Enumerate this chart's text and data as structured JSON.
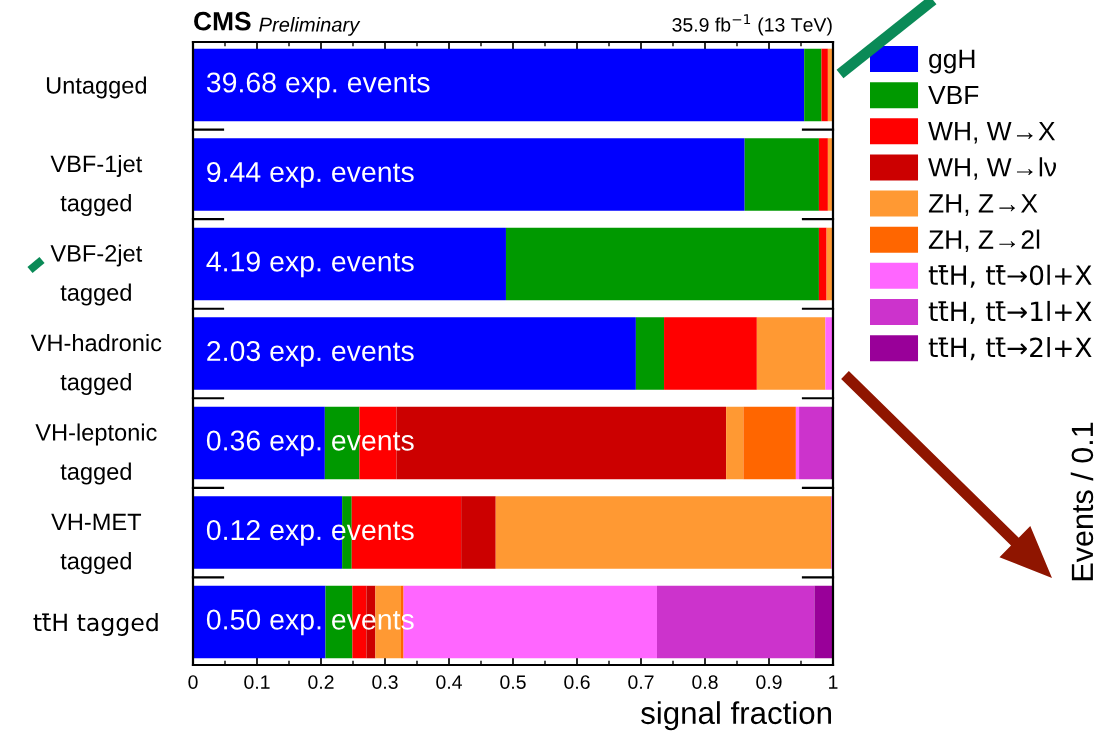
{
  "chart_data": {
    "type": "bar",
    "orientation": "horizontal",
    "stacked": true,
    "title": "CMS",
    "subtitle": "Preliminary",
    "xlabel": "signal fraction",
    "categories": [
      "Untagged",
      "VBF-1jet\ntagged",
      "VBF-2jet\ntagged",
      "VH-hadronic\ntagged",
      "VH-leptonic\ntagged",
      "VH-MET\ntagged",
      "tt̄H tagged"
    ],
    "series": [
      {
        "name": "ggH",
        "color": "#0000ff",
        "values": [
          0.955,
          0.862,
          0.489,
          0.692,
          0.206,
          0.233,
          0.207
        ]
      },
      {
        "name": "VBF",
        "color": "#009900",
        "values": [
          0.027,
          0.116,
          0.489,
          0.044,
          0.054,
          0.015,
          0.042
        ]
      },
      {
        "name": "WH, W→X",
        "color": "#ff0000",
        "values": [
          0.01,
          0.014,
          0.012,
          0.145,
          0.058,
          0.171,
          0.022
        ]
      },
      {
        "name": "WH, W→lν",
        "color": "#cc0000",
        "values": [
          null,
          null,
          null,
          null,
          0.515,
          0.054,
          0.014
        ]
      },
      {
        "name": "ZH, Z→X",
        "color": "#ff9933",
        "values": [
          0.008,
          0.008,
          0.01,
          0.107,
          0.027,
          0.524,
          0.04
        ]
      },
      {
        "name": "ZH, Z→2l",
        "color": "#ff6600",
        "values": [
          null,
          null,
          null,
          null,
          0.082,
          null,
          0.004
        ]
      },
      {
        "name": "tt̄H, tt̄→0l+X",
        "color": "#ff66ff",
        "values": [
          null,
          null,
          null,
          0.011,
          0.005,
          0.003,
          0.396
        ]
      },
      {
        "name": "tt̄H, tt̄→1l+X",
        "color": "#cc33cc",
        "values": [
          null,
          null,
          null,
          null,
          0.049,
          null,
          0.246
        ]
      },
      {
        "name": "tt̄H, tt̄→2l+X",
        "color": "#990099",
        "values": [
          null,
          null,
          null,
          null,
          0.004,
          null,
          0.029
        ]
      }
    ],
    "xlim": [
      0,
      1
    ],
    "xticks": [
      0,
      0.1,
      0.2,
      0.3,
      0.4,
      0.5,
      0.6,
      0.7,
      0.8,
      0.9,
      1
    ],
    "legend": "right",
    "annotations": [
      "35.9 fb$^{−1}$ (13 TeV)",
      "39.68 exp. events",
      "9.44 exp. events",
      "4.19 exp. events",
      "2.03 exp. events",
      "0.36 exp. events",
      "0.12 exp. events",
      "0.50 exp. events",
      "Events / 0.1"
    ]
  }
}
